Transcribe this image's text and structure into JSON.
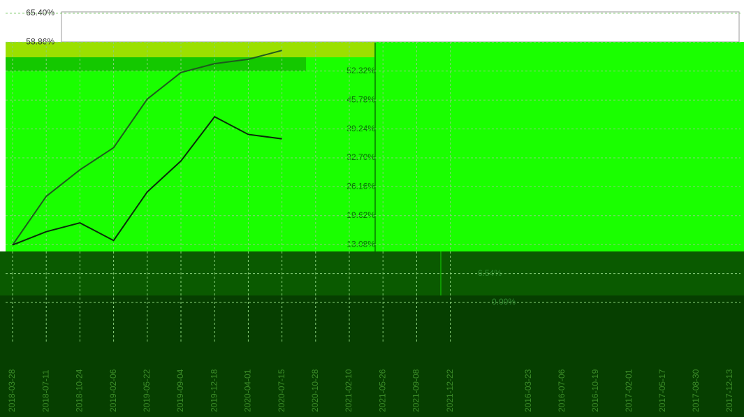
{
  "chart_data": {
    "type": "line",
    "categories": [
      "2018-03-28",
      "2018-07-11",
      "2018-10-24",
      "2019-02-06",
      "2019-05-22",
      "2019-09-04",
      "2019-12-18",
      "2020-04-01",
      "2020-07-15",
      "2020-10-28",
      "2021-02-10",
      "2021-05-26",
      "2021-09-08",
      "2021-12-22"
    ],
    "categories2": [
      "2016-03-23",
      "2016-07-06",
      "2016-10-19",
      "2017-02-01",
      "2017-05-17",
      "2017-08-30",
      "2017-12-13"
    ],
    "series": [
      {
        "color": "#1e5a1e",
        "values": [
          13,
          24,
          30,
          35,
          46,
          52,
          54,
          55,
          57,
          null,
          null,
          null,
          null,
          null
        ]
      },
      {
        "color": "#0a2a0a",
        "values": [
          13,
          16,
          18,
          14,
          25,
          32,
          42,
          38,
          37,
          null,
          null,
          null,
          null,
          null
        ]
      }
    ],
    "ylim": [
      0,
      65.4
    ],
    "yticks": [
      {
        "value": 65.4,
        "label": "65.40%"
      },
      {
        "value": 58.86,
        "label": "58.86%"
      },
      {
        "value": 52.32,
        "label": "52.32%"
      },
      {
        "value": 45.78,
        "label": "45.78%"
      },
      {
        "value": 39.24,
        "label": "39.24%"
      },
      {
        "value": 32.7,
        "label": "32.70%"
      },
      {
        "value": 26.16,
        "label": "26.16%"
      },
      {
        "value": 19.62,
        "label": "19.62%"
      },
      {
        "value": 13.08,
        "label": "13.08%"
      },
      {
        "value": 6.54,
        "label": "6.54%"
      },
      {
        "value": 0,
        "label": "0.00%"
      }
    ],
    "grid": true
  }
}
